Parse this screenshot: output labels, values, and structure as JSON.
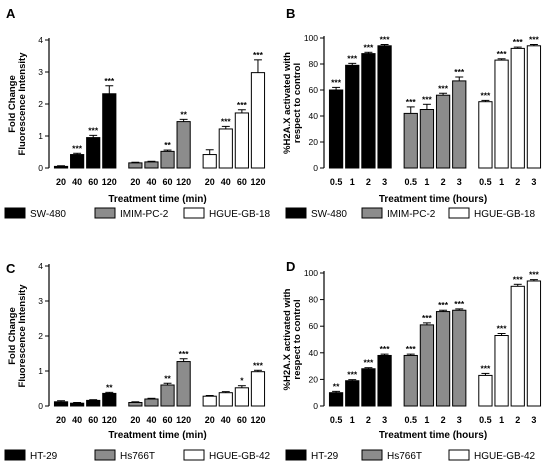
{
  "chart_data": [
    {
      "panel": "A",
      "type": "bar",
      "ylabel_lines": [
        "Fold Change",
        "Fluorescence Intensity"
      ],
      "xlabel": "Treatment time (min)",
      "ylim": [
        0,
        4
      ],
      "yticks": [
        "0",
        "1",
        "2",
        "3",
        "4"
      ],
      "groups": [
        {
          "series": "SW-480",
          "x_labels": [
            "20",
            "40",
            "60",
            "120"
          ],
          "values": [
            0.05,
            0.42,
            0.95,
            2.32
          ],
          "errors": [
            0.02,
            0.04,
            0.07,
            0.25
          ],
          "sig": [
            "",
            "***",
            "***",
            "***"
          ]
        },
        {
          "series": "IMIM-PC-2",
          "x_labels": [
            "20",
            "40",
            "60",
            "120"
          ],
          "values": [
            0.16,
            0.19,
            0.52,
            1.45
          ],
          "errors": [
            0.02,
            0.02,
            0.04,
            0.07
          ],
          "sig": [
            "",
            "",
            "**",
            "**"
          ]
        },
        {
          "series": "HGUE-GB-18",
          "x_labels": [
            "20",
            "40",
            "60",
            "120"
          ],
          "values": [
            0.42,
            1.22,
            1.72,
            2.98
          ],
          "errors": [
            0.15,
            0.08,
            0.1,
            0.4
          ],
          "sig": [
            "",
            "***",
            "***",
            "***"
          ]
        }
      ],
      "legend": [
        "SW-480",
        "IMIM-PC-2",
        "HGUE-GB-18"
      ]
    },
    {
      "panel": "B",
      "type": "bar",
      "ylabel_lines": [
        "%H2A.X activated with",
        "respect to control"
      ],
      "xlabel": "Treatment time (hours)",
      "ylim": [
        0,
        100
      ],
      "yticks": [
        "0",
        "20",
        "40",
        "60",
        "80",
        "100"
      ],
      "groups": [
        {
          "series": "SW-480",
          "x_labels": [
            "0.5",
            "1",
            "2",
            "3"
          ],
          "values": [
            60,
            79,
            88,
            94
          ],
          "errors": [
            2,
            1.5,
            1,
            1
          ],
          "sig": [
            "***",
            "***",
            "***",
            "***"
          ]
        },
        {
          "series": "IMIM-PC-2",
          "x_labels": [
            "0.5",
            "1",
            "2",
            "3"
          ],
          "values": [
            42,
            45,
            56,
            67
          ],
          "errors": [
            5,
            4,
            1.5,
            3
          ],
          "sig": [
            "***",
            "***",
            "***",
            "***"
          ]
        },
        {
          "series": "HGUE-GB-18",
          "x_labels": [
            "0.5",
            "1",
            "2",
            "3"
          ],
          "values": [
            51,
            83,
            92,
            94
          ],
          "errors": [
            1,
            1,
            1,
            1
          ],
          "sig": [
            "***",
            "***",
            "***",
            "***"
          ]
        }
      ],
      "legend": [
        "SW-480",
        "IMIM-PC-2",
        "HGUE-GB-18"
      ]
    },
    {
      "panel": "C",
      "type": "bar",
      "ylabel_lines": [
        "Fold Change",
        "Fluorescence Intensity"
      ],
      "xlabel": "Treatment time (min)",
      "ylim": [
        0,
        4
      ],
      "yticks": [
        "0",
        "1",
        "2",
        "3",
        "4"
      ],
      "groups": [
        {
          "series": "HT-29",
          "x_labels": [
            "20",
            "40",
            "60",
            "120"
          ],
          "values": [
            0.12,
            0.08,
            0.16,
            0.36
          ],
          "errors": [
            0.03,
            0.02,
            0.02,
            0.03
          ],
          "sig": [
            "",
            "",
            "",
            "**"
          ]
        },
        {
          "series": "Hs766T",
          "x_labels": [
            "20",
            "40",
            "60",
            "120"
          ],
          "values": [
            0.1,
            0.2,
            0.6,
            1.27
          ],
          "errors": [
            0.02,
            0.02,
            0.05,
            0.08
          ],
          "sig": [
            "",
            "",
            "**",
            "***"
          ]
        },
        {
          "series": "HGUE-GB-42",
          "x_labels": [
            "20",
            "40",
            "60",
            "120"
          ],
          "values": [
            0.28,
            0.38,
            0.52,
            0.98
          ],
          "errors": [
            0.02,
            0.03,
            0.06,
            0.04
          ],
          "sig": [
            "",
            "",
            "*",
            "***"
          ]
        }
      ],
      "legend": [
        "HT-29",
        "Hs766T",
        "HGUE-GB-42"
      ]
    },
    {
      "panel": "D",
      "type": "bar",
      "ylabel_lines": [
        "%H2A.X activated with",
        "respect to control"
      ],
      "xlabel": "Treatment time (hours)",
      "ylim": [
        0,
        100
      ],
      "yticks": [
        "0",
        "20",
        "40",
        "60",
        "80",
        "100"
      ],
      "groups": [
        {
          "series": "HT-29",
          "x_labels": [
            "0.5",
            "1",
            "2",
            "3"
          ],
          "values": [
            10,
            19,
            28,
            38
          ],
          "errors": [
            1,
            0.8,
            0.8,
            1
          ],
          "sig": [
            "**",
            "***",
            "***",
            "***"
          ]
        },
        {
          "series": "Hs766T",
          "x_labels": [
            "0.5",
            "1",
            "2",
            "3"
          ],
          "values": [
            38,
            61,
            71,
            72
          ],
          "errors": [
            1,
            1.5,
            1,
            1
          ],
          "sig": [
            "***",
            "***",
            "***",
            "***"
          ]
        },
        {
          "series": "HGUE-GB-42",
          "x_labels": [
            "0.5",
            "1",
            "2",
            "3"
          ],
          "values": [
            23,
            53,
            90,
            94
          ],
          "errors": [
            1.5,
            1.5,
            1.5,
            1
          ],
          "sig": [
            "***",
            "***",
            "***",
            "***"
          ]
        }
      ],
      "legend": [
        "HT-29",
        "Hs766T",
        "HGUE-GB-42"
      ]
    }
  ],
  "colors": {
    "series1": "#000000",
    "series2": "#8c8c8c",
    "series3": "#ffffff",
    "outline": "#000000"
  }
}
